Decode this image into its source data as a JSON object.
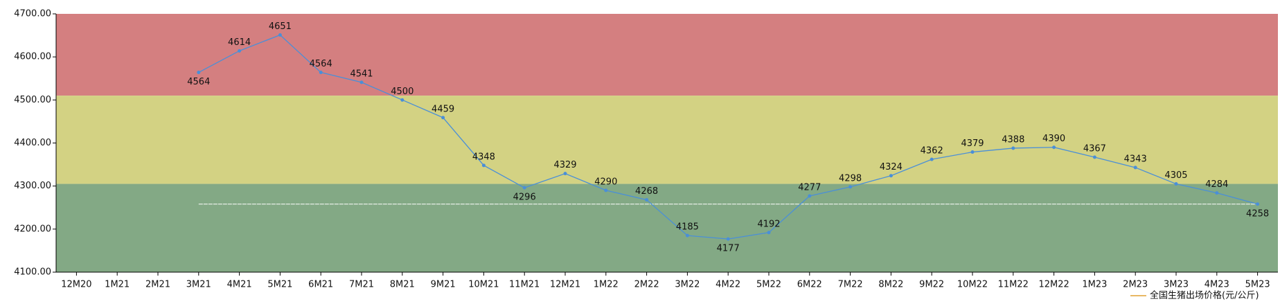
{
  "chart_data": {
    "type": "line",
    "categories": [
      "12M20",
      "1M21",
      "2M21",
      "3M21",
      "4M21",
      "5M21",
      "6M21",
      "7M21",
      "8M21",
      "9M21",
      "10M21",
      "11M21",
      "12M21",
      "1M22",
      "2M22",
      "3M22",
      "4M22",
      "5M22",
      "6M22",
      "7M22",
      "8M22",
      "9M22",
      "10M22",
      "11M22",
      "12M22",
      "1M23",
      "2M23",
      "3M23",
      "4M23",
      "5M23"
    ],
    "series": [
      {
        "name": "全国生猪出场价格(元/公斤)",
        "color": "#4a8fd8",
        "legend_color": "#e0a030",
        "values": [
          null,
          null,
          null,
          4564,
          4614,
          4651,
          4564,
          4541,
          4500,
          4459,
          4348,
          4296,
          4329,
          4290,
          4268,
          4185,
          4177,
          4192,
          4277,
          4298,
          4324,
          4362,
          4379,
          4388,
          4390,
          4367,
          4343,
          4305,
          4284,
          4258
        ]
      }
    ],
    "bands": [
      {
        "from": 4510,
        "to": 4700,
        "color": "#d47f80"
      },
      {
        "from": 4305,
        "to": 4510,
        "color": "#d3d283"
      },
      {
        "from": 4100,
        "to": 4305,
        "color": "#83a985"
      }
    ],
    "reference_line": 4258,
    "ylim": [
      4100,
      4700
    ],
    "yticks": [
      {
        "value": 4100,
        "label": "4100.00"
      },
      {
        "value": 4200,
        "label": "4200.00"
      },
      {
        "value": 4300,
        "label": "4300.00"
      },
      {
        "value": 4400,
        "label": "4400.00"
      },
      {
        "value": 4500,
        "label": "4500.00"
      },
      {
        "value": 4600,
        "label": "4600.00"
      },
      {
        "value": 4700,
        "label": "4700.00"
      }
    ]
  }
}
